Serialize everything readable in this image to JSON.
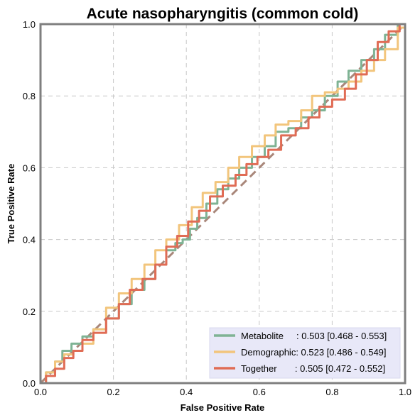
{
  "chart_data": {
    "type": "line",
    "title": "Acute nasopharyngitis (common cold)",
    "xlabel": "False Positive Rate",
    "ylabel": "True Positive Rate",
    "xlim": [
      0,
      1
    ],
    "ylim": [
      0,
      1
    ],
    "xticks": [
      "0.0",
      "0.2",
      "0.4",
      "0.6",
      "0.8",
      "1.0"
    ],
    "yticks": [
      "0.0",
      "0.2",
      "0.4",
      "0.6",
      "0.8",
      "1.0"
    ],
    "grid": true,
    "legend_position": "bottom-right",
    "reference_line": {
      "x": [
        0,
        1
      ],
      "y": [
        0,
        1
      ],
      "style": "dashed",
      "color": "#a9877a"
    },
    "series": [
      {
        "name": "Metabolite",
        "legend_label": "Metabolite     : 0.503 [0.468 - 0.553]",
        "color": "#7fb394",
        "x": [
          0,
          0.03,
          0.05,
          0.07,
          0.1,
          0.13,
          0.16,
          0.2,
          0.23,
          0.27,
          0.3,
          0.33,
          0.36,
          0.38,
          0.4,
          0.42,
          0.44,
          0.47,
          0.5,
          0.53,
          0.56,
          0.6,
          0.63,
          0.66,
          0.7,
          0.73,
          0.76,
          0.8,
          0.83,
          0.86,
          0.9,
          0.93,
          0.96,
          1.0
        ],
        "y": [
          0,
          0.03,
          0.06,
          0.09,
          0.11,
          0.13,
          0.15,
          0.18,
          0.22,
          0.26,
          0.29,
          0.33,
          0.37,
          0.39,
          0.4,
          0.43,
          0.46,
          0.5,
          0.54,
          0.57,
          0.6,
          0.63,
          0.66,
          0.7,
          0.71,
          0.74,
          0.76,
          0.8,
          0.84,
          0.87,
          0.9,
          0.93,
          0.97,
          1.0
        ]
      },
      {
        "name": "Demographic",
        "legend_label": "Demographic: 0.523 [0.486 - 0.549]",
        "color": "#f2c57c",
        "x": [
          0,
          0.03,
          0.05,
          0.08,
          0.1,
          0.13,
          0.16,
          0.2,
          0.23,
          0.27,
          0.3,
          0.33,
          0.36,
          0.4,
          0.43,
          0.46,
          0.5,
          0.53,
          0.56,
          0.6,
          0.63,
          0.66,
          0.7,
          0.73,
          0.76,
          0.8,
          0.83,
          0.86,
          0.9,
          0.93,
          0.96,
          1.0
        ],
        "y": [
          0,
          0.03,
          0.06,
          0.08,
          0.09,
          0.11,
          0.15,
          0.21,
          0.25,
          0.29,
          0.33,
          0.37,
          0.4,
          0.44,
          0.49,
          0.53,
          0.56,
          0.6,
          0.63,
          0.66,
          0.69,
          0.72,
          0.73,
          0.76,
          0.8,
          0.81,
          0.82,
          0.84,
          0.87,
          0.9,
          0.93,
          0.99
        ]
      },
      {
        "name": "Together",
        "legend_label": "Together       : 0.505 [0.472 - 0.552]",
        "color": "#e06c55",
        "x": [
          0,
          0.03,
          0.05,
          0.08,
          0.1,
          0.13,
          0.16,
          0.2,
          0.23,
          0.26,
          0.3,
          0.33,
          0.36,
          0.39,
          0.42,
          0.45,
          0.48,
          0.52,
          0.55,
          0.58,
          0.61,
          0.64,
          0.68,
          0.72,
          0.75,
          0.78,
          0.82,
          0.85,
          0.88,
          0.91,
          0.94,
          0.97,
          1.0
        ],
        "y": [
          0,
          0.02,
          0.04,
          0.07,
          0.09,
          0.12,
          0.14,
          0.18,
          0.22,
          0.26,
          0.29,
          0.33,
          0.38,
          0.41,
          0.45,
          0.48,
          0.52,
          0.55,
          0.58,
          0.61,
          0.63,
          0.65,
          0.69,
          0.71,
          0.74,
          0.77,
          0.79,
          0.82,
          0.86,
          0.9,
          0.95,
          0.98,
          1.0
        ]
      }
    ]
  }
}
